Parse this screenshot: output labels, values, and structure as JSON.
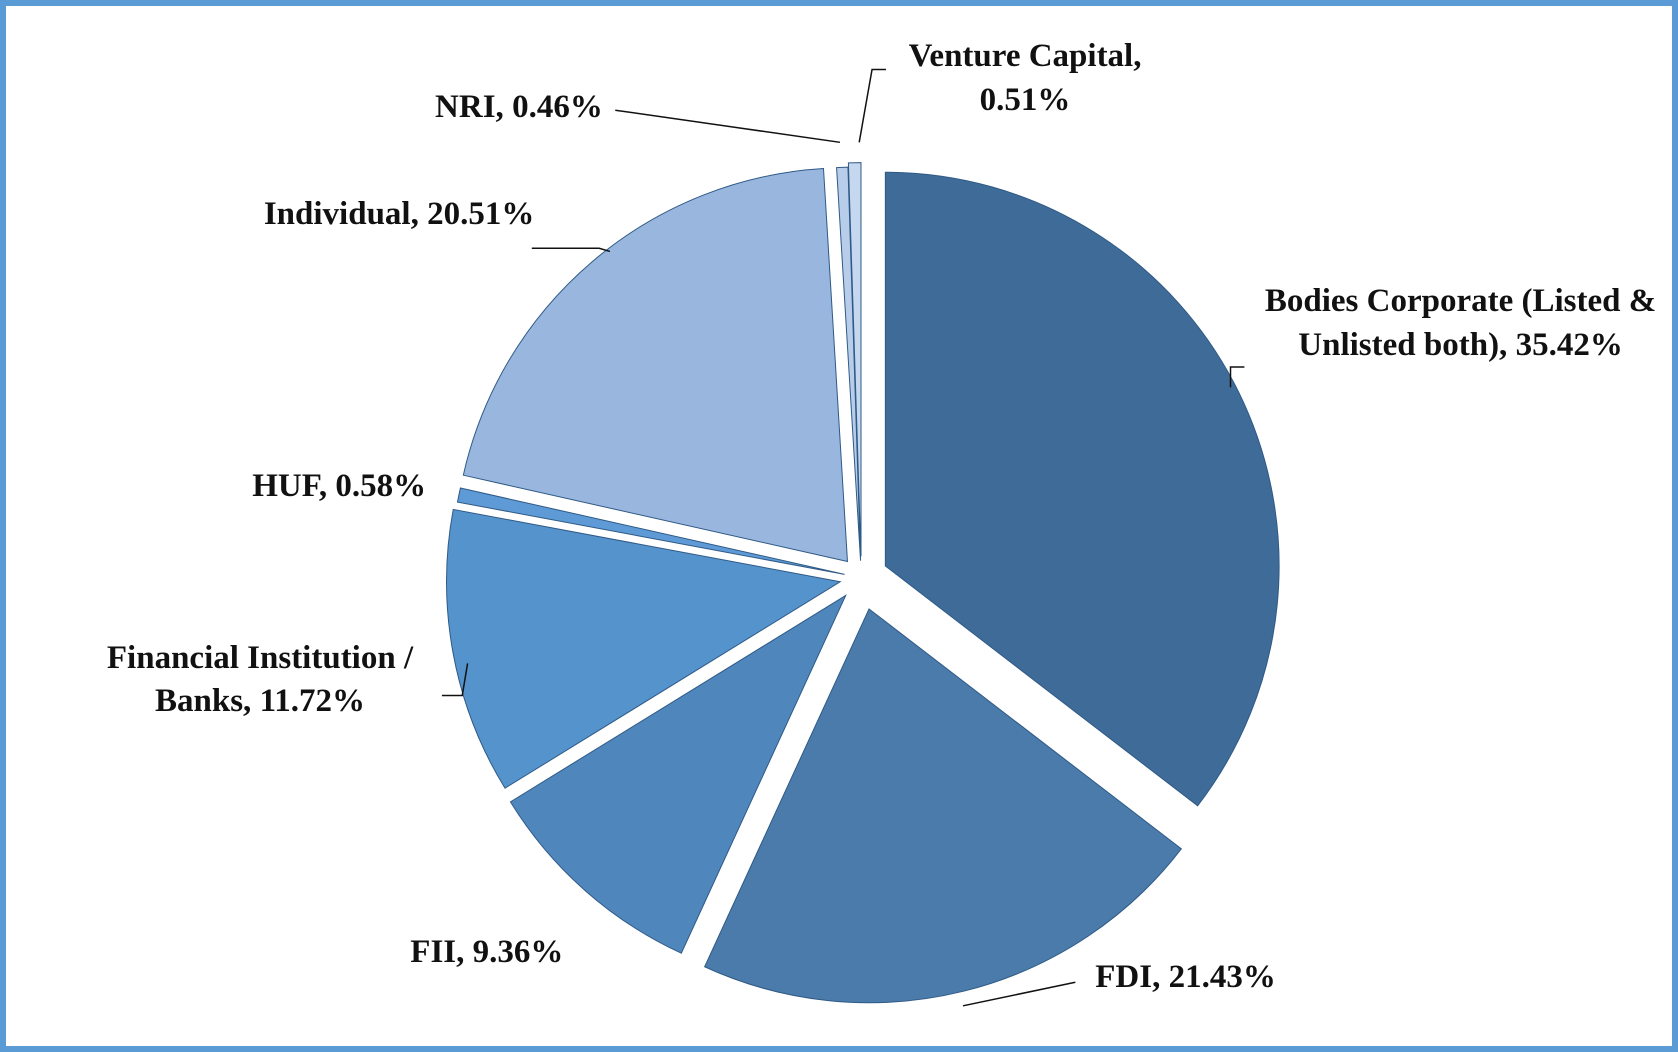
{
  "chart_data": {
    "type": "pie",
    "categories": [
      "Bodies Corporate (Listed & Unlisted both),",
      "FDI,",
      "FII,",
      "Financial Institution / Banks,",
      "HUF,",
      "Individual,",
      "NRI,",
      "Venture Capital,"
    ],
    "values": [
      35.42,
      21.43,
      9.36,
      11.72,
      0.58,
      20.51,
      0.46,
      0.51
    ],
    "value_labels": [
      "35.42%",
      "21.43%",
      "9.36%",
      "11.72%",
      "0.58%",
      "20.51%",
      "0.46%",
      "0.51%"
    ],
    "colors": [
      "#3f6b98",
      "#4a7bab",
      "#4f86bc",
      "#5593cc",
      "#5d9ad6",
      "#98b6de",
      "#b7cdea",
      "#c5d8f0"
    ]
  }
}
